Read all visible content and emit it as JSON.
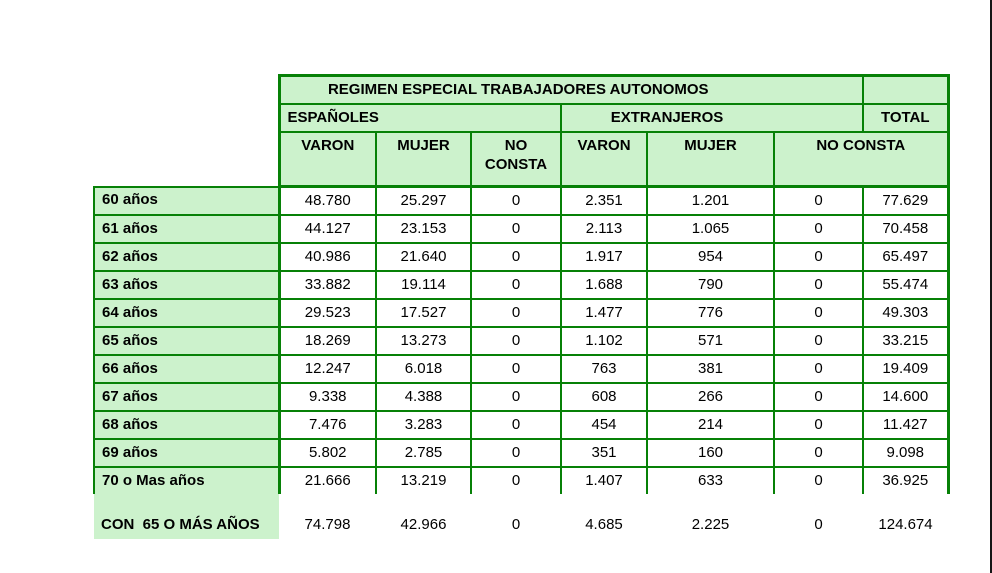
{
  "page": {
    "background": "#ffffff",
    "right_edge_line_color": "#151515"
  },
  "colors": {
    "cell_fill_green": "#ccf2cc",
    "border_green": "#078107",
    "text": "#000000"
  },
  "table": {
    "title": "REGIMEN ESPECIAL TRABAJADORES AUTONOMOS",
    "groups": {
      "espanoles": "ESPAÑOLES",
      "extranjeros": "EXTRANJEROS",
      "total": "TOTAL"
    },
    "columns": [
      "VARON",
      "MUJER",
      "NO CONSTA",
      "VARON",
      "MUJER",
      "NO CONSTA"
    ],
    "rows": [
      {
        "label": "60 años",
        "values": [
          "48.780",
          "25.297",
          "0",
          "2.351",
          "1.201",
          "0",
          "77.629"
        ]
      },
      {
        "label": "61 años",
        "values": [
          "44.127",
          "23.153",
          "0",
          "2.113",
          "1.065",
          "0",
          "70.458"
        ]
      },
      {
        "label": "62 años",
        "values": [
          "40.986",
          "21.640",
          "0",
          "1.917",
          "954",
          "0",
          "65.497"
        ]
      },
      {
        "label": "63 años",
        "values": [
          "33.882",
          "19.114",
          "0",
          "1.688",
          "790",
          "0",
          "55.474"
        ]
      },
      {
        "label": "64 años",
        "values": [
          "29.523",
          "17.527",
          "0",
          "1.477",
          "776",
          "0",
          "49.303"
        ]
      },
      {
        "label": "65 años",
        "values": [
          "18.269",
          "13.273",
          "0",
          "1.102",
          "571",
          "0",
          "33.215"
        ]
      },
      {
        "label": "66 años",
        "values": [
          "12.247",
          "6.018",
          "0",
          "763",
          "381",
          "0",
          "19.409"
        ]
      },
      {
        "label": "67 años",
        "values": [
          "9.338",
          "4.388",
          "0",
          "608",
          "266",
          "0",
          "14.600"
        ]
      },
      {
        "label": "68 años",
        "values": [
          "7.476",
          "3.283",
          "0",
          "454",
          "214",
          "0",
          "11.427"
        ]
      },
      {
        "label": "69 años",
        "values": [
          "5.802",
          "2.785",
          "0",
          "351",
          "160",
          "0",
          "9.098"
        ]
      },
      {
        "label": "70 o Mas años",
        "values": [
          "21.666",
          "13.219",
          "0",
          "1.407",
          "633",
          "0",
          "36.925"
        ]
      }
    ],
    "summary": {
      "label": "CON  65 O MÁS AÑOS",
      "values": [
        "74.798",
        "42.966",
        "0",
        "4.685",
        "2.225",
        "0",
        "124.674"
      ]
    }
  }
}
